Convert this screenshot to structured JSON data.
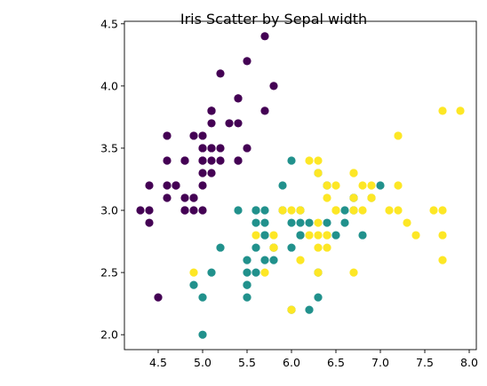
{
  "chart_data": {
    "type": "scatter",
    "title": "Iris Scatter by Sepal width",
    "xlabel": "",
    "ylabel": "",
    "xlim": [
      4.12,
      8.08
    ],
    "ylim": [
      1.88,
      4.52
    ],
    "xticks": [
      4.5,
      5.0,
      5.5,
      6.0,
      6.5,
      7.0,
      7.5,
      8.0
    ],
    "xtick_labels": [
      "4.5",
      "5.0",
      "5.5",
      "6.0",
      "6.5",
      "7.0",
      "7.5",
      "8.0"
    ],
    "yticks": [
      2.0,
      2.5,
      3.0,
      3.5,
      4.0,
      4.5
    ],
    "ytick_labels": [
      "2.0",
      "2.5",
      "3.0",
      "3.5",
      "4.0",
      "4.5"
    ],
    "grid": false,
    "colors": {
      "setosa": "#440154",
      "versicolor": "#21918c",
      "virginica": "#fde725"
    },
    "series": [
      {
        "color": "#440154",
        "points": [
          [
            5.1,
            3.5
          ],
          [
            4.9,
            3.0
          ],
          [
            4.7,
            3.2
          ],
          [
            4.6,
            3.1
          ],
          [
            5.0,
            3.6
          ],
          [
            5.4,
            3.9
          ],
          [
            4.6,
            3.4
          ],
          [
            5.0,
            3.4
          ],
          [
            4.4,
            2.9
          ],
          [
            4.9,
            3.1
          ],
          [
            5.4,
            3.7
          ],
          [
            4.8,
            3.4
          ],
          [
            4.8,
            3.0
          ],
          [
            4.3,
            3.0
          ],
          [
            5.8,
            4.0
          ],
          [
            5.7,
            4.4
          ],
          [
            5.4,
            3.9
          ],
          [
            5.1,
            3.5
          ],
          [
            5.7,
            3.8
          ],
          [
            5.1,
            3.8
          ],
          [
            5.4,
            3.4
          ],
          [
            5.1,
            3.7
          ],
          [
            4.6,
            3.6
          ],
          [
            5.1,
            3.3
          ],
          [
            4.8,
            3.4
          ],
          [
            5.0,
            3.0
          ],
          [
            5.0,
            3.4
          ],
          [
            5.2,
            3.5
          ],
          [
            5.2,
            3.4
          ],
          [
            4.7,
            3.2
          ],
          [
            4.8,
            3.1
          ],
          [
            5.4,
            3.4
          ],
          [
            5.2,
            4.1
          ],
          [
            5.5,
            4.2
          ],
          [
            4.9,
            3.1
          ],
          [
            5.0,
            3.2
          ],
          [
            5.5,
            3.5
          ],
          [
            4.9,
            3.6
          ],
          [
            4.4,
            3.0
          ],
          [
            5.1,
            3.4
          ],
          [
            5.0,
            3.5
          ],
          [
            4.5,
            2.3
          ],
          [
            4.4,
            3.2
          ],
          [
            5.0,
            3.5
          ],
          [
            5.1,
            3.8
          ],
          [
            4.8,
            3.0
          ],
          [
            5.1,
            3.8
          ],
          [
            4.6,
            3.2
          ],
          [
            5.3,
            3.7
          ],
          [
            5.0,
            3.3
          ]
        ]
      },
      {
        "color": "#21918c",
        "points": [
          [
            7.0,
            3.2
          ],
          [
            6.4,
            3.2
          ],
          [
            6.9,
            3.1
          ],
          [
            5.5,
            2.3
          ],
          [
            6.5,
            2.8
          ],
          [
            5.7,
            2.8
          ],
          [
            6.3,
            3.3
          ],
          [
            4.9,
            2.4
          ],
          [
            6.6,
            2.9
          ],
          [
            5.2,
            2.7
          ],
          [
            5.0,
            2.0
          ],
          [
            5.9,
            3.0
          ],
          [
            6.0,
            2.2
          ],
          [
            6.1,
            2.9
          ],
          [
            5.6,
            2.9
          ],
          [
            6.7,
            3.1
          ],
          [
            5.6,
            3.0
          ],
          [
            5.8,
            2.7
          ],
          [
            6.2,
            2.2
          ],
          [
            5.6,
            2.5
          ],
          [
            5.9,
            3.2
          ],
          [
            6.1,
            2.8
          ],
          [
            6.3,
            2.5
          ],
          [
            6.1,
            2.8
          ],
          [
            6.4,
            2.9
          ],
          [
            6.6,
            3.0
          ],
          [
            6.8,
            2.8
          ],
          [
            6.7,
            3.0
          ],
          [
            6.0,
            2.9
          ],
          [
            5.7,
            2.6
          ],
          [
            5.5,
            2.4
          ],
          [
            5.5,
            2.4
          ],
          [
            5.8,
            2.7
          ],
          [
            6.0,
            2.7
          ],
          [
            5.4,
            3.0
          ],
          [
            6.0,
            3.4
          ],
          [
            6.7,
            3.1
          ],
          [
            6.3,
            2.3
          ],
          [
            5.6,
            3.0
          ],
          [
            5.5,
            2.5
          ],
          [
            5.5,
            2.6
          ],
          [
            6.1,
            3.0
          ],
          [
            5.8,
            2.6
          ],
          [
            5.0,
            2.3
          ],
          [
            5.6,
            2.7
          ],
          [
            5.7,
            3.0
          ],
          [
            5.7,
            2.9
          ],
          [
            6.2,
            2.9
          ],
          [
            5.1,
            2.5
          ],
          [
            5.7,
            2.8
          ]
        ]
      },
      {
        "color": "#fde725",
        "points": [
          [
            6.3,
            3.3
          ],
          [
            5.8,
            2.7
          ],
          [
            7.1,
            3.0
          ],
          [
            6.3,
            2.9
          ],
          [
            6.5,
            3.0
          ],
          [
            7.6,
            3.0
          ],
          [
            4.9,
            2.5
          ],
          [
            7.3,
            2.9
          ],
          [
            6.7,
            2.5
          ],
          [
            7.2,
            3.6
          ],
          [
            6.5,
            3.2
          ],
          [
            6.4,
            2.7
          ],
          [
            6.8,
            3.0
          ],
          [
            5.7,
            2.5
          ],
          [
            5.8,
            2.8
          ],
          [
            6.4,
            3.2
          ],
          [
            6.5,
            3.0
          ],
          [
            7.7,
            3.8
          ],
          [
            7.7,
            2.6
          ],
          [
            6.0,
            2.2
          ],
          [
            6.9,
            3.2
          ],
          [
            5.6,
            2.8
          ],
          [
            7.7,
            2.8
          ],
          [
            6.3,
            2.7
          ],
          [
            6.7,
            3.3
          ],
          [
            7.2,
            3.2
          ],
          [
            6.2,
            2.8
          ],
          [
            6.1,
            3.0
          ],
          [
            6.4,
            2.8
          ],
          [
            7.2,
            3.0
          ],
          [
            7.4,
            2.8
          ],
          [
            7.9,
            3.8
          ],
          [
            6.4,
            2.8
          ],
          [
            6.3,
            2.8
          ],
          [
            6.1,
            2.6
          ],
          [
            7.7,
            3.0
          ],
          [
            6.3,
            3.4
          ],
          [
            6.4,
            3.1
          ],
          [
            6.0,
            3.0
          ],
          [
            6.9,
            3.1
          ],
          [
            6.7,
            3.1
          ],
          [
            6.9,
            3.1
          ],
          [
            5.8,
            2.7
          ],
          [
            6.8,
            3.2
          ],
          [
            6.7,
            3.3
          ],
          [
            6.7,
            3.0
          ],
          [
            6.3,
            2.5
          ],
          [
            6.5,
            3.0
          ],
          [
            6.2,
            3.4
          ],
          [
            5.9,
            3.0
          ]
        ]
      }
    ]
  }
}
